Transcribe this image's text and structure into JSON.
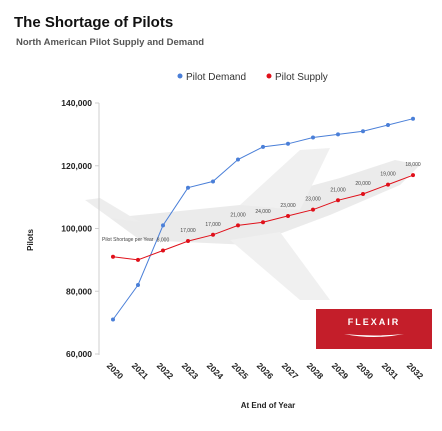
{
  "chart_data": {
    "type": "line",
    "title": "The Shortage of Pilots",
    "subtitle": "North American Pilot Supply and Demand",
    "xlabel": "At End of Year",
    "ylabel": "Pilots",
    "ylim": [
      60000,
      140000
    ],
    "y_ticks": [
      "140,000",
      "120,000",
      "100,000",
      "80,000",
      "60,000"
    ],
    "x": [
      "2020",
      "2021",
      "2022",
      "2023",
      "2024",
      "2025",
      "2026",
      "2027",
      "2028",
      "2029",
      "2030",
      "2031",
      "2032"
    ],
    "x_tick_labels": [
      "2020",
      "2021",
      "2022",
      "2023",
      "2024",
      "2025",
      "2026",
      "2027",
      "2028",
      "2029",
      "2030",
      "2031",
      "2032"
    ],
    "legend_position": "top",
    "grid": false,
    "series": [
      {
        "name": "Pilot Demand",
        "color": "#4a7fd8",
        "values": [
          71000,
          82000,
          101000,
          113000,
          115000,
          122000,
          126000,
          127000,
          129000,
          130000,
          131000,
          133000,
          135000
        ]
      },
      {
        "name": "Pilot Supply",
        "color": "#e0101a",
        "values": [
          91000,
          90000,
          93000,
          96000,
          98000,
          101000,
          102000,
          104000,
          106000,
          109000,
          111000,
          114000,
          117000
        ]
      }
    ],
    "annotations": {
      "shortage_label": "Pilot Shortage per Year",
      "gap_labels": [
        {
          "text": "8,000",
          "x": "2022"
        },
        {
          "text": "17,000",
          "x": "2023"
        },
        {
          "text": "17,000",
          "x": "2024"
        },
        {
          "text": "21,000",
          "x": "2025"
        },
        {
          "text": "24,000",
          "x": "2026"
        },
        {
          "text": "23,000",
          "x": "2027"
        },
        {
          "text": "23,000",
          "x": "2028"
        },
        {
          "text": "21,000",
          "x": "2029"
        },
        {
          "text": "20,000",
          "x": "2030"
        },
        {
          "text": "19,000",
          "x": "2031"
        },
        {
          "text": "18,000",
          "x": "2032"
        }
      ]
    }
  },
  "logo": {
    "text": "FLEXAIR"
  }
}
